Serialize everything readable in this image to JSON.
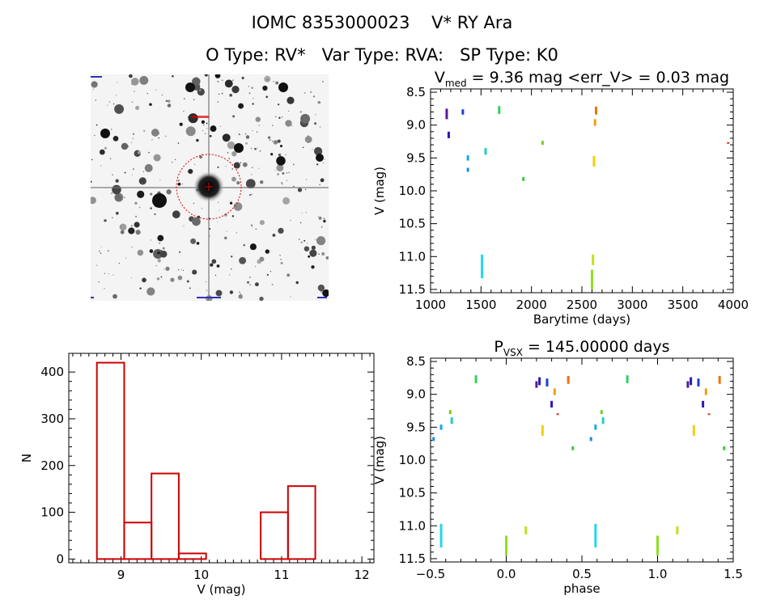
{
  "header": {
    "title_line1": "IOMC 8353000023    V* RY Ara",
    "title_line2": "O Type: RV*   Var Type: RVA:   SP Type: K0"
  },
  "chart_data": [
    {
      "id": "sky-image",
      "type": "image",
      "description_markers": [
        "target circle (red)",
        "scale labels"
      ]
    },
    {
      "id": "light-curve",
      "type": "scatter",
      "title_parts": [
        "V",
        "med",
        " = 9.36 mag <err_V> = 0.03 mag"
      ],
      "xlabel": "Barytime (days)",
      "ylabel": "V (mag)",
      "xlim": [
        1000,
        4000
      ],
      "ylim": [
        11.55,
        8.45
      ],
      "xticks": [
        1000,
        1500,
        2000,
        2500,
        3000,
        3500,
        4000
      ],
      "yticks": [
        8.5,
        9.0,
        9.5,
        10.0,
        10.5,
        11.0,
        11.5
      ],
      "points": [
        {
          "x": 1160,
          "y": 8.83,
          "dy": 0.08,
          "c": "#5a1a9a"
        },
        {
          "x": 1180,
          "y": 9.15,
          "dy": 0.05,
          "c": "#2a1ab0"
        },
        {
          "x": 1320,
          "y": 8.8,
          "dy": 0.04,
          "c": "#1a40d0"
        },
        {
          "x": 1370,
          "y": 9.5,
          "dy": 0.04,
          "c": "#18a8e0"
        },
        {
          "x": 1370,
          "y": 9.68,
          "dy": 0.03,
          "c": "#1890e0"
        },
        {
          "x": 1510,
          "y": 11.15,
          "dy": 0.18,
          "c": "#20d8e8"
        },
        {
          "x": 1545,
          "y": 9.4,
          "dy": 0.05,
          "c": "#20d0c0"
        },
        {
          "x": 1680,
          "y": 8.77,
          "dy": 0.06,
          "c": "#30d060"
        },
        {
          "x": 1920,
          "y": 9.82,
          "dy": 0.03,
          "c": "#40c840"
        },
        {
          "x": 2110,
          "y": 9.27,
          "dy": 0.03,
          "c": "#70d020"
        },
        {
          "x": 2600,
          "y": 11.35,
          "dy": 0.15,
          "c": "#90e020"
        },
        {
          "x": 2610,
          "y": 11.05,
          "dy": 0.08,
          "c": "#c0e020"
        },
        {
          "x": 2620,
          "y": 9.55,
          "dy": 0.08,
          "c": "#f0d010"
        },
        {
          "x": 2630,
          "y": 8.96,
          "dy": 0.05,
          "c": "#f0a010"
        },
        {
          "x": 2640,
          "y": 8.78,
          "dy": 0.06,
          "c": "#f07010"
        },
        {
          "x": 3950,
          "y": 9.27,
          "dy": 0.01,
          "c": "#e03020"
        }
      ]
    },
    {
      "id": "histogram",
      "type": "bar",
      "xlabel": "V (mag)",
      "ylabel": "N",
      "xlim": [
        8.35,
        12.15
      ],
      "ylim": [
        -8,
        440
      ],
      "xticks": [
        9,
        10,
        11,
        12
      ],
      "yticks": [
        0,
        100,
        200,
        300,
        400
      ],
      "bars": [
        {
          "x0": 8.7,
          "x1": 9.04,
          "value": 420
        },
        {
          "x0": 9.04,
          "x1": 9.38,
          "value": 78
        },
        {
          "x0": 9.38,
          "x1": 9.72,
          "value": 183
        },
        {
          "x0": 9.72,
          "x1": 10.06,
          "value": 12
        },
        {
          "x0": 10.06,
          "x1": 10.4,
          "value": 0
        },
        {
          "x0": 10.4,
          "x1": 10.74,
          "value": 0
        },
        {
          "x0": 10.74,
          "x1": 11.08,
          "value": 100
        },
        {
          "x0": 11.08,
          "x1": 11.42,
          "value": 156
        }
      ],
      "color": "#cc0000"
    },
    {
      "id": "phase-curve",
      "type": "scatter",
      "title_parts": [
        "P",
        "VSX",
        " = 145.00000 days"
      ],
      "xlabel": "phase",
      "ylabel": "V (mag)",
      "xlim": [
        -0.5,
        1.5
      ],
      "ylim": [
        11.55,
        8.45
      ],
      "xticks": [
        -0.5,
        0.0,
        0.5,
        1.0,
        1.5
      ],
      "xticklabels": [
        "−0.5",
        "0.0",
        "0.5",
        "1.0",
        "1.5"
      ],
      "yticks": [
        8.5,
        9.0,
        9.5,
        10.0,
        10.5,
        11.0,
        11.5
      ],
      "points": [
        {
          "x": -0.48,
          "y": 9.68,
          "dy": 0.03,
          "c": "#1890e0"
        },
        {
          "x": -0.43,
          "y": 9.5,
          "dy": 0.04,
          "c": "#18a8e0"
        },
        {
          "x": -0.43,
          "y": 11.15,
          "dy": 0.18,
          "c": "#20d8e8"
        },
        {
          "x": -0.37,
          "y": 9.27,
          "dy": 0.03,
          "c": "#70d020"
        },
        {
          "x": -0.36,
          "y": 9.4,
          "dy": 0.05,
          "c": "#20d0c0"
        },
        {
          "x": -0.2,
          "y": 8.77,
          "dy": 0.06,
          "c": "#30d060"
        },
        {
          "x": 0.0,
          "y": 11.3,
          "dy": 0.15,
          "c": "#90e020"
        },
        {
          "x": 0.13,
          "y": 11.07,
          "dy": 0.06,
          "c": "#c0e020"
        },
        {
          "x": 0.2,
          "y": 8.85,
          "dy": 0.05,
          "c": "#5a1a9a"
        },
        {
          "x": 0.22,
          "y": 8.8,
          "dy": 0.06,
          "c": "#2a1ab0"
        },
        {
          "x": 0.24,
          "y": 9.55,
          "dy": 0.08,
          "c": "#f0d010"
        },
        {
          "x": 0.27,
          "y": 8.82,
          "dy": 0.06,
          "c": "#1a40d0"
        },
        {
          "x": 0.3,
          "y": 9.15,
          "dy": 0.05,
          "c": "#2a1ab0"
        },
        {
          "x": 0.32,
          "y": 8.96,
          "dy": 0.05,
          "c": "#f0a010"
        },
        {
          "x": 0.34,
          "y": 9.3,
          "dy": 0.01,
          "c": "#e03020"
        },
        {
          "x": 0.41,
          "y": 8.78,
          "dy": 0.06,
          "c": "#f07010"
        },
        {
          "x": 0.44,
          "y": 9.82,
          "dy": 0.03,
          "c": "#40c840"
        },
        {
          "x": 0.56,
          "y": 9.68,
          "dy": 0.03,
          "c": "#1890e0"
        },
        {
          "x": 0.59,
          "y": 9.5,
          "dy": 0.04,
          "c": "#18a8e0"
        },
        {
          "x": 0.59,
          "y": 11.15,
          "dy": 0.18,
          "c": "#20d8e8"
        },
        {
          "x": 0.63,
          "y": 9.27,
          "dy": 0.03,
          "c": "#70d020"
        },
        {
          "x": 0.64,
          "y": 9.4,
          "dy": 0.05,
          "c": "#20d0c0"
        },
        {
          "x": 0.8,
          "y": 8.77,
          "dy": 0.06,
          "c": "#30d060"
        },
        {
          "x": 1.0,
          "y": 11.3,
          "dy": 0.15,
          "c": "#90e020"
        },
        {
          "x": 1.13,
          "y": 11.07,
          "dy": 0.06,
          "c": "#c0e020"
        },
        {
          "x": 1.2,
          "y": 8.85,
          "dy": 0.05,
          "c": "#5a1a9a"
        },
        {
          "x": 1.22,
          "y": 8.8,
          "dy": 0.06,
          "c": "#2a1ab0"
        },
        {
          "x": 1.24,
          "y": 9.55,
          "dy": 0.08,
          "c": "#f0d010"
        },
        {
          "x": 1.27,
          "y": 8.82,
          "dy": 0.06,
          "c": "#1a40d0"
        },
        {
          "x": 1.3,
          "y": 9.15,
          "dy": 0.05,
          "c": "#2a1ab0"
        },
        {
          "x": 1.32,
          "y": 8.96,
          "dy": 0.05,
          "c": "#f0a010"
        },
        {
          "x": 1.34,
          "y": 9.3,
          "dy": 0.01,
          "c": "#e03020"
        },
        {
          "x": 1.41,
          "y": 8.78,
          "dy": 0.06,
          "c": "#f07010"
        },
        {
          "x": 1.44,
          "y": 9.82,
          "dy": 0.03,
          "c": "#40c840"
        }
      ]
    }
  ]
}
